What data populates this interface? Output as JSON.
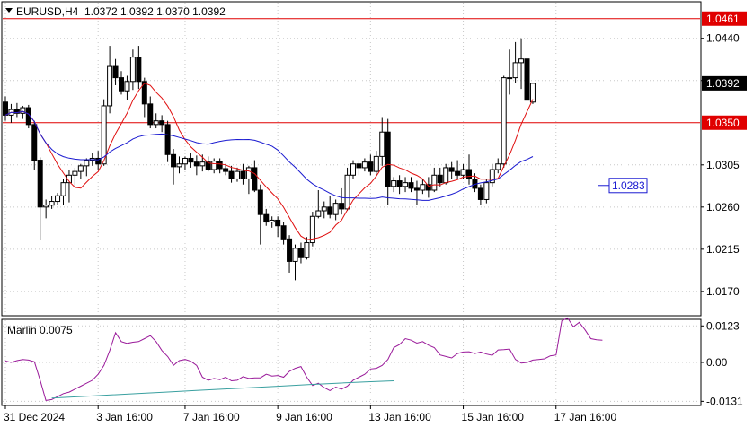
{
  "chart_data": [
    {
      "type": "candlestick",
      "symbol": "EURUSD,H4",
      "ohlc_header": "1.0372 1.0392 1.0370 1.0392",
      "title": "EURUSD,H4  1.0372 1.0392 1.0370 1.0392",
      "ylim": [
        1.0145,
        1.0478
      ],
      "y_ticks": [
        "1.0440",
        "1.0395",
        "1.0305",
        "1.0260",
        "1.0215",
        "1.0170"
      ],
      "horizontal_levels": [
        {
          "label": "1.0461",
          "value": 1.0461,
          "color": "#e00000"
        },
        {
          "label": "1.0350",
          "value": 1.035,
          "color": "#e00000"
        }
      ],
      "price_label": {
        "label": "1.0392",
        "value": 1.0392
      },
      "ma_label": {
        "label": "1.0283",
        "value": 1.0283,
        "color": "#1a1ad0"
      },
      "x_labels": [
        "31 Dec 2024",
        "3 Jan 16:00",
        "7 Jan 16:00",
        "9 Jan 16:00",
        "13 Jan 16:00",
        "15 Jan 16:00",
        "17 Jan 16:00"
      ],
      "x_label_bars": [
        0,
        16,
        31,
        47,
        63,
        79,
        95
      ],
      "candles": [
        [
          1.0372,
          1.0378,
          1.0352,
          1.0358
        ],
        [
          1.0358,
          1.037,
          1.035,
          1.0364
        ],
        [
          1.0364,
          1.0371,
          1.0356,
          1.036
        ],
        [
          1.036,
          1.0368,
          1.0354,
          1.0366
        ],
        [
          1.0366,
          1.0369,
          1.0344,
          1.0348
        ],
        [
          1.0348,
          1.0352,
          1.03,
          1.031
        ],
        [
          1.031,
          1.0313,
          1.0225,
          1.026
        ],
        [
          1.026,
          1.0268,
          1.0248,
          1.0262
        ],
        [
          1.0262,
          1.0272,
          1.0258,
          1.0266
        ],
        [
          1.0266,
          1.0275,
          1.0262,
          1.0272
        ],
        [
          1.0272,
          1.029,
          1.0262,
          1.0286
        ],
        [
          1.0286,
          1.03,
          1.0265,
          1.0294
        ],
        [
          1.0294,
          1.0302,
          1.0282,
          1.0298
        ],
        [
          1.0298,
          1.0306,
          1.029,
          1.0304
        ],
        [
          1.0304,
          1.0312,
          1.0293,
          1.031
        ],
        [
          1.031,
          1.0318,
          1.0304,
          1.0312
        ],
        [
          1.0312,
          1.032,
          1.03,
          1.0306
        ],
        [
          1.0306,
          1.0375,
          1.0304,
          1.0368
        ],
        [
          1.0368,
          1.0432,
          1.036,
          1.041
        ],
        [
          1.041,
          1.0418,
          1.039,
          1.0398
        ],
        [
          1.0398,
          1.0405,
          1.038,
          1.0384
        ],
        [
          1.0384,
          1.04,
          1.0374,
          1.0394
        ],
        [
          1.0394,
          1.0428,
          1.0385,
          1.042
        ],
        [
          1.042,
          1.0432,
          1.0386,
          1.0394
        ],
        [
          1.0394,
          1.0398,
          1.0356,
          1.037
        ],
        [
          1.037,
          1.0378,
          1.0344,
          1.0348
        ],
        [
          1.0348,
          1.036,
          1.0344,
          1.0352
        ],
        [
          1.0352,
          1.0358,
          1.034,
          1.0348
        ],
        [
          1.0348,
          1.0352,
          1.0308,
          1.0316
        ],
        [
          1.0316,
          1.0322,
          1.0284,
          1.0303
        ],
        [
          1.0303,
          1.0314,
          1.0296,
          1.0306
        ],
        [
          1.0306,
          1.0314,
          1.03,
          1.0312
        ],
        [
          1.0312,
          1.0318,
          1.0302,
          1.0308
        ],
        [
          1.0308,
          1.0315,
          1.0294,
          1.0304
        ],
        [
          1.0304,
          1.0316,
          1.0298,
          1.0308
        ],
        [
          1.0308,
          1.0314,
          1.0298,
          1.03
        ],
        [
          1.03,
          1.0312,
          1.0296,
          1.0309
        ],
        [
          1.0309,
          1.0312,
          1.0296,
          1.0301
        ],
        [
          1.0301,
          1.0306,
          1.0294,
          1.0298
        ],
        [
          1.0298,
          1.0304,
          1.0286,
          1.029
        ],
        [
          1.029,
          1.0302,
          1.0287,
          1.0298
        ],
        [
          1.0298,
          1.0306,
          1.0284,
          1.029
        ],
        [
          1.029,
          1.0304,
          1.0274,
          1.0302
        ],
        [
          1.0302,
          1.031,
          1.0276,
          1.0278
        ],
        [
          1.0278,
          1.0284,
          1.022,
          1.0252
        ],
        [
          1.0252,
          1.0258,
          1.024,
          1.0244
        ],
        [
          1.0244,
          1.025,
          1.0238,
          1.0246
        ],
        [
          1.0246,
          1.025,
          1.0228,
          1.024
        ],
        [
          1.024,
          1.0244,
          1.022,
          1.0226
        ],
        [
          1.0226,
          1.023,
          1.019,
          1.0202
        ],
        [
          1.0202,
          1.022,
          1.0182,
          1.0216
        ],
        [
          1.0216,
          1.0222,
          1.02,
          1.0206
        ],
        [
          1.0206,
          1.0228,
          1.0204,
          1.0222
        ],
        [
          1.0222,
          1.0255,
          1.0218,
          1.025
        ],
        [
          1.025,
          1.0278,
          1.0248,
          1.0256
        ],
        [
          1.0256,
          1.0266,
          1.0248,
          1.026
        ],
        [
          1.026,
          1.0272,
          1.0248,
          1.0252
        ],
        [
          1.0252,
          1.0268,
          1.0246,
          1.0264
        ],
        [
          1.0264,
          1.028,
          1.0252,
          1.0258
        ],
        [
          1.0258,
          1.0302,
          1.0256,
          1.0294
        ],
        [
          1.0294,
          1.031,
          1.029,
          1.0306
        ],
        [
          1.0306,
          1.031,
          1.0294,
          1.0302
        ],
        [
          1.0302,
          1.0312,
          1.0298,
          1.0308
        ],
        [
          1.0308,
          1.0316,
          1.0294,
          1.0298
        ],
        [
          1.0298,
          1.032,
          1.0294,
          1.0314
        ],
        [
          1.0314,
          1.0356,
          1.0304,
          1.034
        ],
        [
          1.034,
          1.0354,
          1.0262,
          1.0282
        ],
        [
          1.0282,
          1.0292,
          1.0276,
          1.0288
        ],
        [
          1.0288,
          1.0294,
          1.0274,
          1.0282
        ],
        [
          1.0282,
          1.0292,
          1.0276,
          1.0286
        ],
        [
          1.0286,
          1.0292,
          1.0276,
          1.028
        ],
        [
          1.028,
          1.0288,
          1.0262,
          1.0278
        ],
        [
          1.0278,
          1.029,
          1.0274,
          1.0284
        ],
        [
          1.0284,
          1.0292,
          1.027,
          1.0278
        ],
        [
          1.0278,
          1.0302,
          1.0276,
          1.0294
        ],
        [
          1.0294,
          1.0302,
          1.0282,
          1.0286
        ],
        [
          1.0286,
          1.0306,
          1.0284,
          1.0302
        ],
        [
          1.0302,
          1.0308,
          1.029,
          1.0298
        ],
        [
          1.0298,
          1.031,
          1.029,
          1.0294
        ],
        [
          1.0294,
          1.0306,
          1.029,
          1.03
        ],
        [
          1.03,
          1.0316,
          1.0284,
          1.029
        ],
        [
          1.029,
          1.0296,
          1.0276,
          1.028
        ],
        [
          1.028,
          1.0284,
          1.0262,
          1.0268
        ],
        [
          1.0268,
          1.029,
          1.0264,
          1.0286
        ],
        [
          1.0286,
          1.0306,
          1.0282,
          1.03
        ],
        [
          1.03,
          1.0312,
          1.0296,
          1.0306
        ],
        [
          1.0306,
          1.04,
          1.0302,
          1.0398
        ],
        [
          1.0398,
          1.0428,
          1.038,
          1.0398
        ],
        [
          1.0398,
          1.0436,
          1.0392,
          1.0414
        ],
        [
          1.0414,
          1.044,
          1.0386,
          1.0418
        ],
        [
          1.0418,
          1.043,
          1.0362,
          1.0374
        ],
        [
          1.0372,
          1.0392,
          1.037,
          1.0392
        ]
      ]
    },
    {
      "type": "line",
      "name": "Marlin 0.0075",
      "ylim": [
        -0.0142,
        0.0142
      ],
      "y_ticks": [
        "0.0123",
        "0.00",
        "-0.0131"
      ],
      "marlin_line_color": "#9a1a9a",
      "signal_line_color": "#3aa0a0",
      "values": [
        0.0005,
        0.0,
        0.0006,
        0.001,
        0.0008,
        0.0002,
        -0.006,
        -0.0128,
        -0.0125,
        -0.0115,
        -0.0105,
        -0.01,
        -0.009,
        -0.008,
        -0.007,
        -0.006,
        -0.004,
        -0.001,
        0.004,
        0.01,
        0.007,
        0.0064,
        0.0068,
        0.007,
        0.008,
        0.009,
        0.007,
        0.004,
        0.002,
        -0.001,
        0.0006,
        0.001,
        0.0004,
        -0.001,
        -0.005,
        -0.006,
        -0.0054,
        -0.0058,
        -0.005,
        -0.0062,
        -0.006,
        -0.0048,
        -0.0054,
        -0.0052,
        -0.0052,
        -0.004,
        -0.0046,
        -0.0044,
        -0.005,
        -0.003,
        -0.002,
        -0.0014,
        -0.005,
        -0.0078,
        -0.007,
        -0.0085,
        -0.0095,
        -0.0083,
        -0.009,
        -0.008,
        -0.006,
        -0.005,
        -0.004,
        -0.0022,
        -0.002,
        -0.001,
        0.001,
        0.005,
        0.006,
        0.008,
        0.0075,
        0.0065,
        0.007,
        0.0058,
        0.005,
        0.0025,
        0.002,
        0.0015,
        0.003,
        0.0035,
        0.0036,
        0.003,
        0.0035,
        0.0028,
        0.0024,
        0.0042,
        0.0043,
        0.0045,
        0.001,
        -0.0002,
        0.0,
        0.0008,
        0.001,
        0.0012,
        0.0022,
        0.0025,
        0.014,
        0.015,
        0.012,
        0.0135,
        0.011,
        0.008,
        0.0076,
        0.0075
      ],
      "signal_values": [
        -0.012,
        -0.0115,
        -0.011,
        -0.0105,
        -0.01,
        -0.0095,
        -0.009,
        -0.0085,
        -0.008,
        -0.0075,
        -0.007,
        -0.0066,
        -0.0062
      ]
    }
  ]
}
